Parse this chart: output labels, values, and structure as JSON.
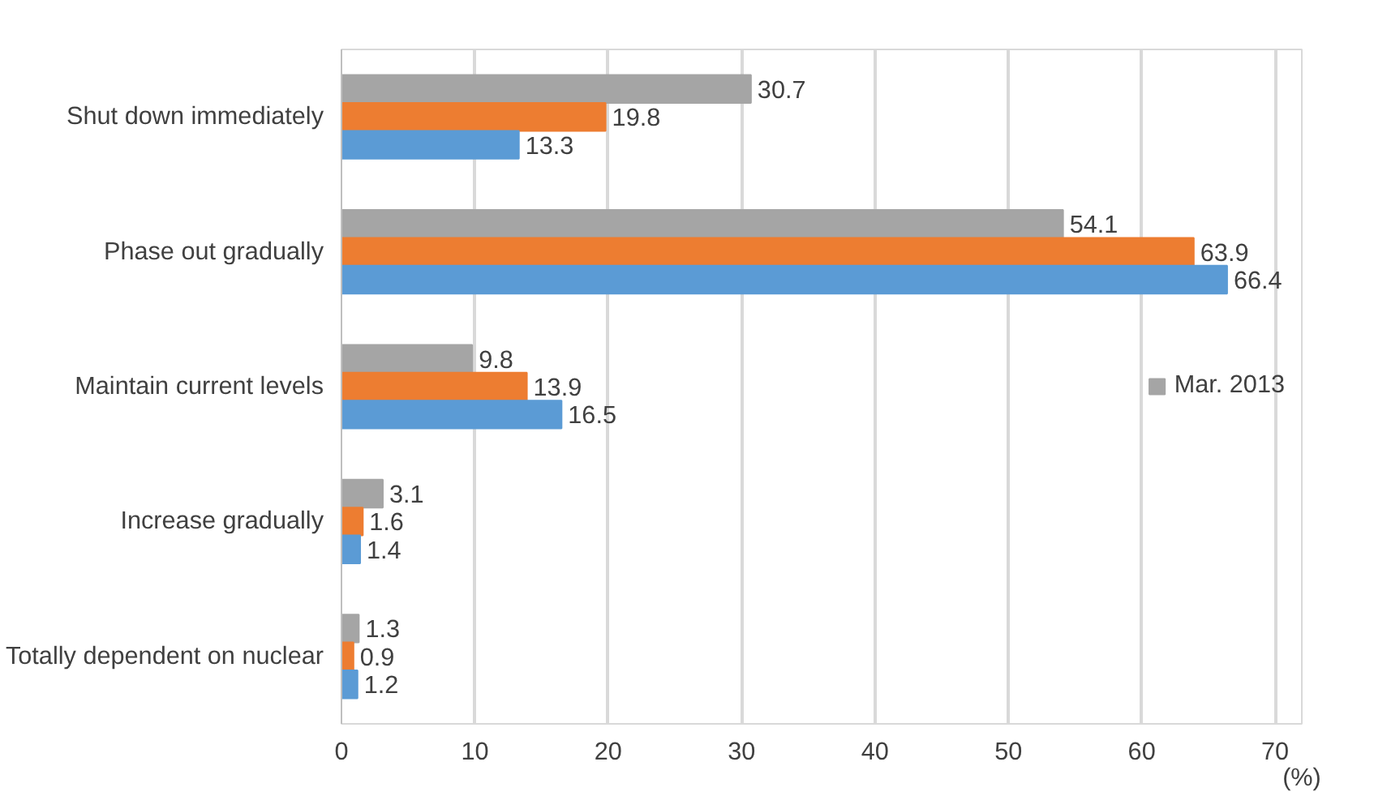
{
  "chart_data": {
    "type": "bar",
    "orientation": "horizontal",
    "categories": [
      "Shut down immediately",
      "Phase out gradually",
      "Maintain current levels",
      "Increase gradually",
      "Totally dependent on nuclear"
    ],
    "series": [
      {
        "name": "Mar. 2013",
        "color": "#a5a5a5",
        "values": [
          30.7,
          54.1,
          9.8,
          3.1,
          1.3
        ]
      },
      {
        "color": "#ed7d31",
        "values": [
          19.8,
          63.9,
          13.9,
          1.6,
          0.9
        ]
      },
      {
        "color": "#5b9bd5",
        "values": [
          13.3,
          66.4,
          16.5,
          1.4,
          1.2
        ]
      }
    ],
    "xlabel": "(%)",
    "xlim": [
      0,
      72
    ],
    "xticks": [
      0,
      10,
      20,
      30,
      40,
      50,
      60,
      70
    ],
    "grid": "x",
    "legend": "right",
    "data_labels": true
  }
}
